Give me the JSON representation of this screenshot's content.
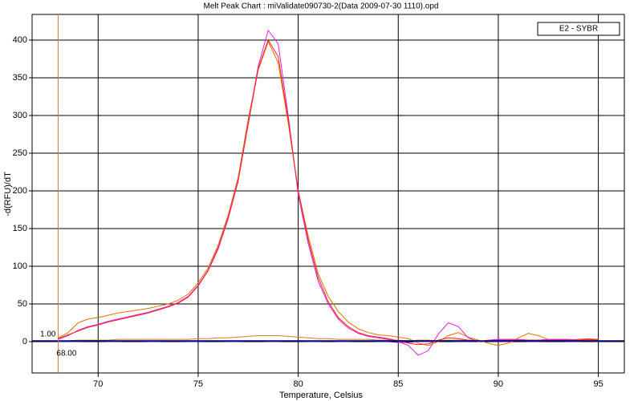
{
  "chart_data": {
    "type": "line",
    "title": "Melt Peak Chart : miValidate090730-2(Data 2009-07-30 1110).opd",
    "x_label": "Temperature, Celsius",
    "y_label": "-d(RFU)/dT",
    "legend_label": "E2 - SYBR",
    "xlim": [
      66.7,
      96.3
    ],
    "ylim": [
      -41.5,
      434
    ],
    "xticks": [
      70,
      75,
      80,
      85,
      90,
      95
    ],
    "yticks": [
      0,
      50,
      100,
      150,
      200,
      250,
      300,
      350,
      400
    ],
    "grid": true,
    "threshold": {
      "value": 1,
      "label": "1.00",
      "color": "#000080"
    },
    "cursor": {
      "value": 68,
      "label": "68.00",
      "color": "#e07030"
    },
    "x": [
      68,
      68.5,
      69,
      69.5,
      70,
      70.5,
      71,
      71.5,
      72,
      72.5,
      73,
      73.5,
      74,
      74.5,
      75,
      75.5,
      76,
      76.5,
      77,
      77.5,
      78,
      78.5,
      79,
      79.5,
      80,
      80.5,
      81,
      81.5,
      82,
      82.5,
      83,
      83.5,
      84,
      84.5,
      85,
      85.5,
      86,
      86.5,
      87,
      87.5,
      88,
      88.5,
      89,
      89.5,
      90,
      90.5,
      91,
      91.5,
      92,
      92.5,
      93,
      93.5,
      94,
      94.5,
      95
    ],
    "series": [
      {
        "color": "#d08020",
        "values": [
          1,
          1,
          2,
          2,
          2,
          2,
          3,
          3,
          3,
          3,
          3,
          3,
          3,
          3,
          4,
          4,
          5,
          5,
          6,
          7,
          8,
          8,
          8,
          7,
          6,
          5,
          4,
          4,
          3,
          3,
          3,
          3,
          2,
          2,
          2,
          1,
          2,
          2,
          1,
          2,
          2,
          2,
          1,
          1,
          2,
          2,
          2,
          2,
          2,
          2,
          2,
          2,
          2,
          2,
          2
        ]
      },
      {
        "color": "#2020c0",
        "values": [
          0,
          0,
          0,
          1,
          1,
          0,
          0,
          1,
          1,
          0,
          0,
          1,
          1,
          0,
          0,
          1,
          1,
          0,
          0,
          1,
          1,
          0,
          0,
          1,
          1,
          0,
          0,
          1,
          0,
          0,
          1,
          1,
          0,
          0,
          -1,
          -1,
          0,
          0,
          1,
          1,
          0,
          0,
          1,
          1,
          0,
          0,
          1,
          0,
          0,
          1,
          1,
          0,
          0,
          1,
          0
        ]
      },
      {
        "color": "#e07000",
        "values": [
          5,
          12,
          25,
          30,
          32,
          35,
          38,
          40,
          42,
          44,
          47,
          50,
          55,
          63,
          78,
          98,
          128,
          168,
          218,
          295,
          360,
          398,
          370,
          290,
          200,
          140,
          90,
          60,
          40,
          26,
          17,
          12,
          9,
          8,
          6,
          4,
          -2,
          -5,
          0,
          8,
          12,
          6,
          2,
          -2,
          -5,
          -2,
          5,
          11,
          8,
          3,
          2,
          2,
          3,
          4,
          3
        ]
      },
      {
        "color": "#e020e0",
        "values": [
          3,
          8,
          15,
          20,
          23,
          27,
          30,
          33,
          36,
          39,
          43,
          47,
          52,
          60,
          75,
          95,
          125,
          165,
          215,
          290,
          365,
          413,
          395,
          300,
          195,
          130,
          80,
          50,
          30,
          18,
          11,
          7,
          5,
          3,
          0,
          -5,
          -18,
          -12,
          10,
          25,
          20,
          5,
          0,
          2,
          3,
          3,
          3,
          2,
          2,
          3,
          3,
          3,
          2,
          3,
          2
        ]
      },
      {
        "color": "#ff2020",
        "values": [
          4,
          9,
          14,
          19,
          22,
          26,
          29,
          32,
          35,
          38,
          42,
          46,
          51,
          59,
          74,
          94,
          123,
          163,
          213,
          288,
          362,
          400,
          378,
          295,
          200,
          135,
          85,
          53,
          32,
          20,
          12,
          8,
          6,
          4,
          1,
          -2,
          -4,
          -3,
          2,
          5,
          4,
          2,
          1,
          1,
          2,
          2,
          2,
          2,
          2,
          2,
          2,
          2,
          2,
          3,
          2
        ]
      }
    ]
  }
}
